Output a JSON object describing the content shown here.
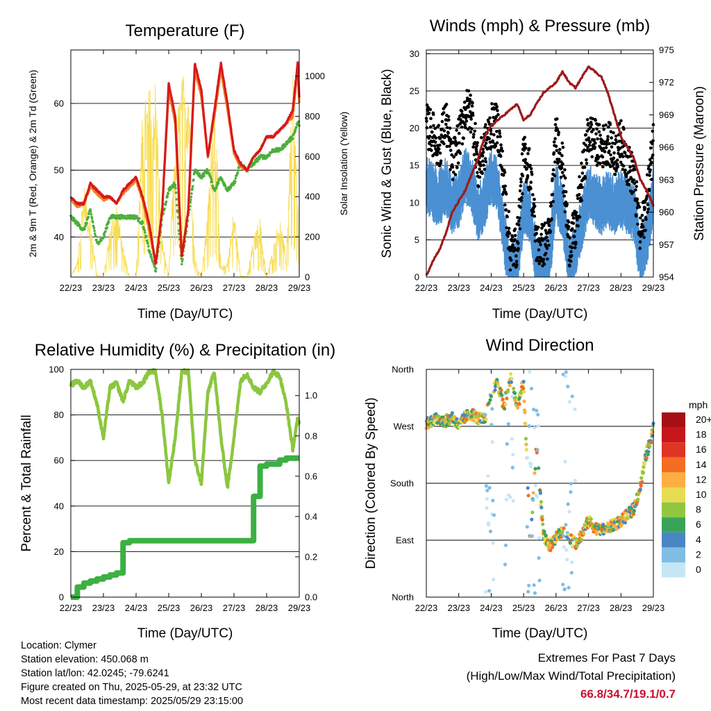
{
  "chart_data": [
    {
      "type": "line",
      "title": "Temperature (F)",
      "xlabel": "Time (Day/UTC)",
      "ylabel": "2m & 9m T (Red, Orange) & 2m Td (Green)",
      "ylabel_right": "Solar Insolation (Yellow)",
      "ylim": [
        34,
        68
      ],
      "ylim_right": [
        0,
        1130
      ],
      "yticks": [
        40,
        50,
        60
      ],
      "yticks_right": [
        0,
        200,
        400,
        600,
        800,
        1000
      ],
      "x_ticks": [
        "22/23",
        "23/23",
        "24/23",
        "25/23",
        "26/23",
        "27/23",
        "28/23",
        "29/23"
      ],
      "grid": "horizontal",
      "colors": {
        "t2m": "#d7191c",
        "t9m": "#f57f26",
        "td": "#4daf3c",
        "solar": "#f7dc4f"
      },
      "x": [
        0,
        0.2,
        0.4,
        0.6,
        0.8,
        1.0,
        1.2,
        1.4,
        1.6,
        1.8,
        2.0,
        2.2,
        2.4,
        2.6,
        2.8,
        3.0,
        3.2,
        3.4,
        3.6,
        3.8,
        4.0,
        4.2,
        4.4,
        4.6,
        4.8,
        5.0,
        5.2,
        5.4,
        5.6,
        5.8,
        6.0,
        6.2,
        6.4,
        6.6,
        6.8,
        6.95,
        7.0
      ],
      "series": [
        {
          "name": "2m T",
          "values": [
            46,
            45,
            45,
            48,
            47,
            46,
            46,
            45,
            47,
            48,
            49,
            46,
            42,
            36,
            44,
            63,
            58,
            37,
            44,
            66,
            62,
            52,
            59,
            66,
            60,
            53,
            51,
            50,
            52,
            53,
            55,
            55,
            56,
            57,
            59,
            66,
            61
          ]
        },
        {
          "name": "9m T",
          "values": [
            45.5,
            44.5,
            45,
            47.5,
            46.5,
            45.5,
            46,
            45,
            46.5,
            47.5,
            48.5,
            45.5,
            41,
            36,
            44,
            62,
            57,
            37,
            44,
            65,
            61,
            52,
            58,
            65,
            59,
            52.5,
            50.5,
            50,
            52,
            53,
            55,
            55,
            56,
            57,
            58,
            65,
            60
          ]
        },
        {
          "name": "2m Td",
          "values": [
            43,
            42,
            41,
            44,
            39,
            40,
            43,
            43,
            43,
            43,
            43,
            42,
            38,
            35,
            43,
            47,
            48,
            36,
            43,
            50,
            49,
            50,
            47,
            49,
            47,
            48,
            51,
            50,
            51,
            52,
            52,
            53,
            53,
            54,
            55,
            57,
            57
          ]
        },
        {
          "name": "Solar Insolation",
          "values": [
            0,
            80,
            480,
            300,
            10,
            0,
            250,
            380,
            150,
            0,
            0,
            850,
            950,
            1000,
            200,
            0,
            780,
            1000,
            1100,
            100,
            0,
            350,
            1000,
            50,
            80,
            350,
            10,
            0,
            200,
            300,
            0,
            150,
            320,
            100,
            1050,
            400,
            0
          ]
        }
      ]
    },
    {
      "type": "scatter",
      "title": "Winds (mph) & Pressure (mb)",
      "xlabel": "Time (Day/UTC)",
      "ylabel": "Sonic Wind & Gust (Blue, Black)",
      "ylabel_right": "Station Pressure (Maroon)",
      "ylim": [
        0,
        30.5
      ],
      "ylim_right": [
        954,
        975
      ],
      "yticks": [
        0,
        5,
        10,
        15,
        20,
        25,
        30
      ],
      "yticks_right": [
        954,
        957,
        960,
        963,
        966,
        969,
        972,
        975
      ],
      "x_ticks": [
        "22/23",
        "23/23",
        "24/23",
        "25/23",
        "26/23",
        "27/23",
        "28/23",
        "29/23"
      ],
      "grid": "horizontal",
      "colors": {
        "wind": "#4a90d2",
        "gust": "#000000",
        "pressure": "#9b1b1b"
      },
      "x": [
        0,
        0.2,
        0.4,
        0.6,
        0.8,
        1.0,
        1.2,
        1.4,
        1.6,
        1.8,
        2.0,
        2.2,
        2.4,
        2.6,
        2.8,
        3.0,
        3.2,
        3.4,
        3.6,
        3.8,
        4.0,
        4.2,
        4.4,
        4.6,
        4.8,
        5.0,
        5.2,
        5.4,
        5.6,
        5.8,
        6.0,
        6.2,
        6.4,
        6.6,
        6.8,
        6.95,
        7.0
      ],
      "series": [
        {
          "name": "Sonic Wind",
          "values": [
            13,
            12,
            11,
            13,
            10,
            11,
            14,
            13,
            9,
            11,
            14,
            13,
            6,
            1,
            2,
            10,
            9,
            2,
            2,
            3,
            12,
            9,
            2,
            4,
            8,
            12,
            11,
            10,
            11,
            10,
            11,
            10,
            9,
            3,
            6,
            10,
            13
          ]
        },
        {
          "name": "Gust",
          "values": [
            20,
            19,
            17,
            21,
            15,
            18,
            22,
            22,
            14,
            17,
            20,
            20,
            12,
            3,
            4,
            16,
            14,
            4,
            4,
            5,
            19,
            15,
            4,
            6,
            13,
            19,
            18,
            17,
            18,
            16,
            18,
            15,
            13,
            5,
            10,
            16,
            20
          ]
        },
        {
          "name": "Station Pressure",
          "values": [
            954.1,
            955.5,
            956.5,
            958,
            960,
            961,
            962,
            963.5,
            965,
            967,
            968,
            968.5,
            969,
            969.5,
            970,
            968.5,
            969,
            970,
            971,
            971.5,
            972,
            973,
            972,
            971.5,
            972.5,
            973.5,
            973,
            972.5,
            971,
            969,
            967,
            966,
            965,
            963,
            962,
            961,
            960.5
          ]
        }
      ]
    },
    {
      "type": "line",
      "title": "Relative Humidity (%) & Precipitation (in)",
      "xlabel": "Time (Day/UTC)",
      "ylabel": "Percent & Total Rainfall",
      "ylim": [
        0,
        100
      ],
      "ylim_right": [
        0,
        1.13
      ],
      "yticks": [
        0,
        20,
        40,
        60,
        80,
        100
      ],
      "yticks_right": [
        0.0,
        0.2,
        0.4,
        0.6,
        0.8,
        1.0
      ],
      "x_ticks": [
        "22/23",
        "23/23",
        "24/23",
        "25/23",
        "26/23",
        "27/23",
        "28/23",
        "29/23"
      ],
      "grid": "horizontal",
      "colors": {
        "rh": "#8cc63f",
        "precip": "#3cb043"
      },
      "x": [
        0,
        0.2,
        0.4,
        0.6,
        0.8,
        1.0,
        1.2,
        1.4,
        1.6,
        1.8,
        2.0,
        2.2,
        2.4,
        2.6,
        2.8,
        3.0,
        3.2,
        3.4,
        3.6,
        3.8,
        4.0,
        4.2,
        4.4,
        4.6,
        4.8,
        5.0,
        5.2,
        5.4,
        5.6,
        5.8,
        6.0,
        6.2,
        6.4,
        6.6,
        6.8,
        6.95,
        7.0
      ],
      "series": [
        {
          "name": "Relative Humidity",
          "values": [
            93,
            95,
            92,
            95,
            85,
            70,
            92,
            94,
            86,
            95,
            92,
            94,
            99,
            99,
            80,
            50,
            70,
            99,
            99,
            60,
            50,
            90,
            99,
            70,
            48,
            70,
            95,
            98,
            92,
            90,
            94,
            99,
            97,
            85,
            65,
            78,
            77
          ]
        },
        {
          "name": "Total Rainfall",
          "values": [
            0,
            0.05,
            0.07,
            0.08,
            0.09,
            0.1,
            0.11,
            0.12,
            0.27,
            0.28,
            0.28,
            0.28,
            0.28,
            0.28,
            0.28,
            0.28,
            0.28,
            0.28,
            0.28,
            0.28,
            0.28,
            0.28,
            0.28,
            0.28,
            0.28,
            0.28,
            0.28,
            0.28,
            0.5,
            0.65,
            0.66,
            0.66,
            0.68,
            0.69,
            0.69,
            0.69,
            0.69
          ]
        }
      ]
    },
    {
      "type": "scatter",
      "title": "Wind Direction",
      "xlabel": "Time (Day/UTC)",
      "ylabel": "Direction (Colored By Speed)",
      "y_tick_labels": [
        "North",
        "East",
        "South",
        "West",
        "North"
      ],
      "ylim": [
        0,
        360
      ],
      "x_ticks": [
        "22/23",
        "23/23",
        "24/23",
        "25/23",
        "26/23",
        "27/23",
        "28/23",
        "29/23"
      ],
      "grid": "horizontal",
      "legend": {
        "title": "mph",
        "labels": [
          "20+",
          "18",
          "16",
          "14",
          "12",
          "10",
          "8",
          "6",
          "4",
          "2",
          "0"
        ],
        "colors": [
          "#a50f15",
          "#c8161d",
          "#e03424",
          "#f46d23",
          "#fdae43",
          "#e6dc52",
          "#91c640",
          "#3aa35a",
          "#4a86c3",
          "#80bde3",
          "#c6e6f6"
        ],
        "placement": "right"
      },
      "series": [
        {
          "name": "Direction",
          "x": [
            0,
            0.2,
            0.4,
            0.6,
            0.8,
            1.0,
            1.2,
            1.4,
            1.6,
            1.8,
            2.0,
            2.2,
            2.4,
            2.6,
            2.8,
            3.0,
            3.2,
            3.4,
            3.6,
            3.8,
            4.0,
            4.2,
            4.4,
            4.6,
            4.8,
            5.0,
            5.2,
            5.4,
            5.6,
            5.8,
            6.0,
            6.2,
            6.4,
            6.6,
            6.8,
            6.95,
            7.0
          ],
          "values": [
            275,
            280,
            282,
            278,
            285,
            270,
            285,
            290,
            282,
            280,
            320,
            340,
            300,
            350,
            300,
            340,
            90,
            240,
            100,
            80,
            95,
            105,
            95,
            85,
            100,
            120,
            110,
            105,
            110,
            115,
            120,
            130,
            140,
            175,
            230,
            250,
            280
          ]
        }
      ]
    }
  ],
  "info": {
    "location": "Location: Clymer",
    "elevation": "Station elevation: 450.068 m",
    "latlon": "Station lat/lon: 42.0245; -79.6241",
    "created": "Figure created on Thu, 2025-05-29, at 23:32 UTC",
    "recent": "Most recent data timestamp: 2025/05/29 23:15:00"
  },
  "extremes": {
    "title": "Extremes For Past 7 Days",
    "subtitle": "(High/Low/Max Wind/Total Precipitation)",
    "value": "66.8/34.7/19.1/0.7"
  }
}
